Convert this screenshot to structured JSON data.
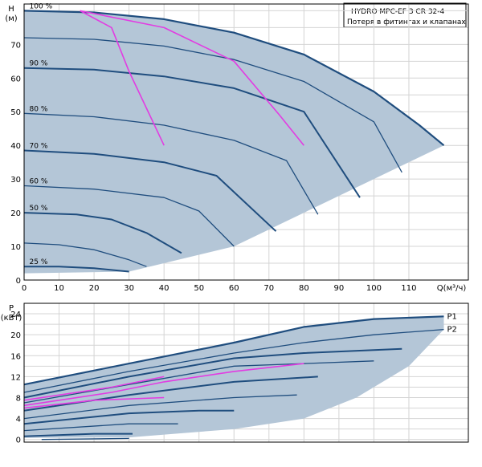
{
  "header": {
    "title": "HYDRO MPC-EF 3 CR 32-4",
    "subtitle": "Потеря в фитингах и клапанах"
  },
  "colors": {
    "area_fill": "#b4c6d7",
    "curve": "#1f4d7e",
    "system_curve": "#e23ce2",
    "grid": "#d4d4d4",
    "frame": "#000000"
  },
  "chart_data": [
    {
      "type": "line",
      "name": "head",
      "ylabel_line1": "H",
      "ylabel_line2": "(м)",
      "xlabel": "Q(м³/ч)",
      "xlim": [
        0,
        127
      ],
      "ylim": [
        0,
        82
      ],
      "x_ticks": [
        0,
        10,
        20,
        30,
        40,
        50,
        60,
        70,
        80,
        90,
        100,
        110
      ],
      "y_ticks": [
        0,
        10,
        20,
        30,
        40,
        50,
        60,
        70
      ],
      "grid": true,
      "envelope": [
        [
          0,
          80
        ],
        [
          20,
          79.5
        ],
        [
          40,
          77.5
        ],
        [
          60,
          73.5
        ],
        [
          80,
          67
        ],
        [
          100,
          56
        ],
        [
          113,
          46
        ],
        [
          120,
          40
        ],
        [
          60,
          10
        ],
        [
          30,
          2.5
        ],
        [
          0,
          2
        ],
        [
          0,
          80
        ]
      ],
      "speed_curves": [
        {
          "label": "100 %",
          "points": [
            [
              0,
              80
            ],
            [
              20,
              79.5
            ],
            [
              40,
              77.5
            ],
            [
              60,
              73.5
            ],
            [
              80,
              67
            ],
            [
              100,
              56
            ],
            [
              113,
              46
            ],
            [
              120,
              40
            ]
          ]
        },
        {
          "label": "",
          "points": [
            [
              0,
              72
            ],
            [
              20,
              71.5
            ],
            [
              40,
              69.5
            ],
            [
              60,
              65.5
            ],
            [
              80,
              59
            ],
            [
              100,
              47
            ],
            [
              108,
              32
            ]
          ]
        },
        {
          "label": "90 %",
          "points": [
            [
              0,
              63
            ],
            [
              20,
              62.5
            ],
            [
              40,
              60.5
            ],
            [
              60,
              57
            ],
            [
              80,
              50
            ],
            [
              96,
              24.5
            ]
          ]
        },
        {
          "label": "80 %",
          "points": [
            [
              0,
              49.5
            ],
            [
              20,
              48.5
            ],
            [
              40,
              46
            ],
            [
              60,
              41.5
            ],
            [
              75,
              35.5
            ],
            [
              84,
              19.5
            ]
          ]
        },
        {
          "label": "70 %",
          "points": [
            [
              0,
              38.5
            ],
            [
              20,
              37.5
            ],
            [
              40,
              35
            ],
            [
              55,
              31
            ],
            [
              72,
              14.5
            ]
          ]
        },
        {
          "label": "60 %",
          "points": [
            [
              0,
              28
            ],
            [
              20,
              27
            ],
            [
              40,
              24.5
            ],
            [
              50,
              20.5
            ],
            [
              60,
              10
            ]
          ]
        },
        {
          "label": "50 %",
          "points": [
            [
              0,
              20
            ],
            [
              15,
              19.5
            ],
            [
              25,
              18
            ],
            [
              35,
              14
            ],
            [
              45,
              8
            ]
          ]
        },
        {
          "label": "",
          "points": [
            [
              0,
              11
            ],
            [
              10,
              10.5
            ],
            [
              20,
              9
            ],
            [
              30,
              6
            ],
            [
              35,
              4
            ]
          ]
        },
        {
          "label": "25 %",
          "points": [
            [
              0,
              4
            ],
            [
              10,
              4
            ],
            [
              20,
              3.5
            ],
            [
              30,
              2.5
            ]
          ]
        }
      ],
      "system_curves": [
        {
          "points": [
            [
              16,
              80
            ],
            [
              25,
              75
            ],
            [
              30,
              62
            ],
            [
              35,
              51
            ],
            [
              40,
              40
            ]
          ]
        },
        {
          "points": [
            [
              16,
              80
            ],
            [
              40,
              75
            ],
            [
              60,
              65
            ],
            [
              73,
              49
            ],
            [
              80,
              40
            ]
          ]
        }
      ],
      "speed_labels_y": {
        "100 %": 80,
        "90 %": 63,
        "80 %": 49.5,
        "70 %": 38.5,
        "60 %": 28,
        "50 %": 20,
        "25 %": 4
      }
    },
    {
      "type": "line",
      "name": "power",
      "ylabel_line1": "P",
      "ylabel_line2": "(кВт)",
      "xlim": [
        0,
        127
      ],
      "ylim": [
        -0.5,
        26
      ],
      "y_ticks": [
        0,
        4,
        8,
        12,
        16,
        20,
        24
      ],
      "x_ticks": [
        0,
        10,
        20,
        30,
        40,
        50,
        60,
        70,
        80,
        90,
        100,
        110
      ],
      "grid": true,
      "envelope": [
        [
          0,
          10.5
        ],
        [
          30,
          14.5
        ],
        [
          60,
          18.5
        ],
        [
          80,
          21.5
        ],
        [
          100,
          23
        ],
        [
          120,
          23.5
        ],
        [
          120,
          21
        ],
        [
          110,
          14
        ],
        [
          95,
          8
        ],
        [
          80,
          4
        ],
        [
          60,
          2
        ],
        [
          30,
          0.4
        ],
        [
          0,
          0.3
        ]
      ],
      "speed_curves": [
        {
          "points": [
            [
              0,
              10.5
            ],
            [
              30,
              14.5
            ],
            [
              60,
              18.5
            ],
            [
              80,
              21.5
            ],
            [
              100,
              23
            ],
            [
              120,
              23.5
            ]
          ]
        },
        {
          "points": [
            [
              0,
              9
            ],
            [
              30,
              13
            ],
            [
              60,
              16.5
            ],
            [
              80,
              18.5
            ],
            [
              100,
              20
            ],
            [
              120,
              21
            ]
          ]
        },
        {
          "points": [
            [
              0,
              8
            ],
            [
              30,
              12
            ],
            [
              60,
              15.5
            ],
            [
              80,
              16.5
            ],
            [
              108,
              17.3
            ]
          ]
        },
        {
          "points": [
            [
              0,
              7
            ],
            [
              30,
              10.5
            ],
            [
              60,
              14
            ],
            [
              80,
              14.5
            ],
            [
              100,
              15
            ]
          ]
        },
        {
          "points": [
            [
              0,
              5.5
            ],
            [
              30,
              8.5
            ],
            [
              60,
              11
            ],
            [
              84,
              12
            ]
          ]
        },
        {
          "points": [
            [
              0,
              4
            ],
            [
              30,
              6.5
            ],
            [
              60,
              8
            ],
            [
              78,
              8.5
            ]
          ]
        },
        {
          "points": [
            [
              0,
              3
            ],
            [
              30,
              5
            ],
            [
              50,
              5.5
            ],
            [
              60,
              5.5
            ]
          ]
        },
        {
          "points": [
            [
              0,
              1.7
            ],
            [
              30,
              3
            ],
            [
              44,
              3
            ]
          ]
        },
        {
          "points": [
            [
              0,
              0.6
            ],
            [
              20,
              1.1
            ],
            [
              31,
              1.1
            ]
          ]
        },
        {
          "points": [
            [
              5,
              0
            ],
            [
              30,
              0.2
            ]
          ]
        }
      ],
      "system_curves": [
        {
          "points": [
            [
              0,
              7.5
            ],
            [
              25,
              10
            ],
            [
              40,
              12
            ]
          ]
        },
        {
          "points": [
            [
              0,
              6.5
            ],
            [
              25,
              9
            ],
            [
              40,
              11
            ],
            [
              60,
              13
            ],
            [
              80,
              14.5
            ]
          ]
        },
        {
          "points": [
            [
              0,
              6
            ],
            [
              20,
              7.5
            ],
            [
              40,
              8
            ]
          ]
        }
      ],
      "series_labels": [
        {
          "name": "P1",
          "y": 23.5
        },
        {
          "name": "P2",
          "y": 21
        }
      ]
    }
  ]
}
